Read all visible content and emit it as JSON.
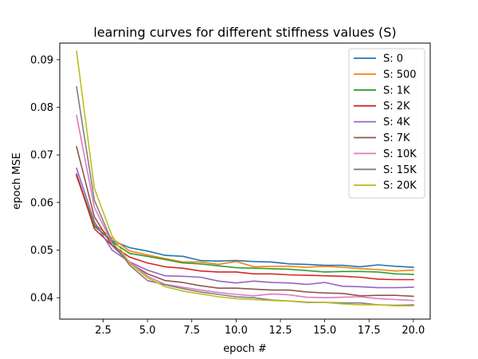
{
  "chart_data": {
    "type": "line",
    "title": "learning curves for different stiffness values (S)",
    "xlabel": "epoch #",
    "ylabel": "epoch MSE",
    "xlim": [
      0.05,
      20.95
    ],
    "ylim": [
      0.0355,
      0.0935
    ],
    "xticks": [
      2.5,
      5.0,
      7.5,
      10.0,
      12.5,
      15.0,
      17.5,
      20.0
    ],
    "xtick_labels": [
      "2.5",
      "5.0",
      "7.5",
      "10.0",
      "12.5",
      "15.0",
      "17.5",
      "20.0"
    ],
    "yticks": [
      0.04,
      0.05,
      0.06,
      0.07,
      0.08,
      0.09
    ],
    "ytick_labels": [
      "0.04",
      "0.05",
      "0.06",
      "0.07",
      "0.08",
      "0.09"
    ],
    "grid": false,
    "legend_position": "top-right",
    "x": [
      1,
      2,
      3,
      4,
      5,
      6,
      7,
      8,
      9,
      10,
      11,
      12,
      13,
      14,
      15,
      16,
      17,
      18,
      19,
      20
    ],
    "series": [
      {
        "name": "S: 0",
        "color": "#1f77b4",
        "values": [
          0.066,
          0.055,
          0.052,
          0.0505,
          0.0498,
          0.0489,
          0.0487,
          0.0478,
          0.0477,
          0.0478,
          0.0476,
          0.0475,
          0.0471,
          0.047,
          0.0468,
          0.0468,
          0.0465,
          0.0469,
          0.0466,
          0.0464
        ]
      },
      {
        "name": "S: 500",
        "color": "#ff7f0e",
        "values": [
          0.0655,
          0.0555,
          0.0525,
          0.0498,
          0.049,
          0.0482,
          0.0475,
          0.0475,
          0.047,
          0.0476,
          0.0465,
          0.0466,
          0.0466,
          0.0464,
          0.0466,
          0.0464,
          0.0461,
          0.0459,
          0.0456,
          0.0458
        ]
      },
      {
        "name": "S: 1K",
        "color": "#2ca02c",
        "values": [
          0.0657,
          0.0552,
          0.0518,
          0.0493,
          0.0487,
          0.048,
          0.0473,
          0.0471,
          0.0467,
          0.0463,
          0.0462,
          0.0461,
          0.046,
          0.0457,
          0.0454,
          0.0455,
          0.0455,
          0.0454,
          0.045,
          0.0449
        ]
      },
      {
        "name": "S: 2K",
        "color": "#d62728",
        "values": [
          0.0658,
          0.0545,
          0.051,
          0.0485,
          0.0473,
          0.0465,
          0.0462,
          0.0456,
          0.0454,
          0.0454,
          0.045,
          0.045,
          0.0448,
          0.0447,
          0.0446,
          0.0445,
          0.0443,
          0.0439,
          0.0438,
          0.0438
        ]
      },
      {
        "name": "S: 4K",
        "color": "#9467bd",
        "values": [
          0.0672,
          0.056,
          0.05,
          0.0475,
          0.0458,
          0.0446,
          0.0445,
          0.0443,
          0.0435,
          0.0431,
          0.0435,
          0.0432,
          0.0431,
          0.0428,
          0.0432,
          0.0424,
          0.0423,
          0.0421,
          0.0421,
          0.0422
        ]
      },
      {
        "name": "S: 7K",
        "color": "#8c564b",
        "values": [
          0.0717,
          0.057,
          0.051,
          0.0473,
          0.045,
          0.0436,
          0.0432,
          0.0425,
          0.042,
          0.042,
          0.0418,
          0.0416,
          0.0416,
          0.0412,
          0.041,
          0.0409,
          0.0404,
          0.0405,
          0.0405,
          0.0403
        ]
      },
      {
        "name": "S: 10K",
        "color": "#e377c2",
        "values": [
          0.0783,
          0.059,
          0.0515,
          0.0475,
          0.0445,
          0.0428,
          0.0422,
          0.0416,
          0.0411,
          0.0407,
          0.0404,
          0.0408,
          0.0406,
          0.0401,
          0.04,
          0.0401,
          0.0402,
          0.0398,
          0.0396,
          0.0394
        ]
      },
      {
        "name": "S: 15K",
        "color": "#7f7f7f",
        "values": [
          0.0843,
          0.0605,
          0.0518,
          0.0468,
          0.0436,
          0.0427,
          0.0419,
          0.0412,
          0.0407,
          0.0402,
          0.04,
          0.0395,
          0.0393,
          0.039,
          0.039,
          0.0389,
          0.0389,
          0.0385,
          0.0384,
          0.0385
        ]
      },
      {
        "name": "S: 20K",
        "color": "#bcbd22",
        "values": [
          0.0918,
          0.063,
          0.053,
          0.0472,
          0.0442,
          0.0423,
          0.0414,
          0.0408,
          0.0402,
          0.0398,
          0.0396,
          0.0394,
          0.0393,
          0.0391,
          0.039,
          0.0387,
          0.0385,
          0.0385,
          0.0383,
          0.0383
        ]
      }
    ]
  }
}
